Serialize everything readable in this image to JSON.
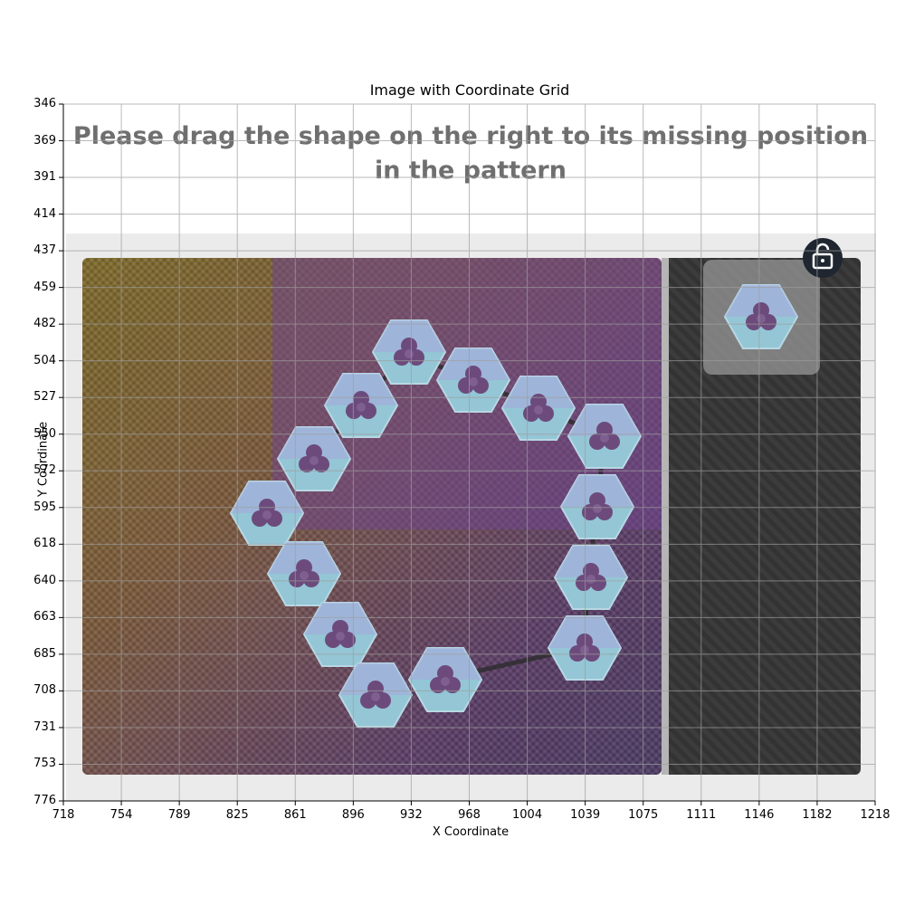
{
  "chart": {
    "title": "Image with Coordinate Grid",
    "xlabel": "X Coordinate",
    "ylabel": "Y Coordinate",
    "x_ticks": [
      "718",
      "754",
      "789",
      "825",
      "861",
      "896",
      "932",
      "968",
      "1004",
      "1039",
      "1075",
      "1111",
      "1146",
      "1182",
      "1218"
    ],
    "y_ticks": [
      "346",
      "369",
      "391",
      "414",
      "437",
      "459",
      "482",
      "504",
      "527",
      "550",
      "572",
      "595",
      "618",
      "640",
      "663",
      "685",
      "708",
      "731",
      "753",
      "776"
    ]
  },
  "captcha": {
    "instruction": "Please drag the shape on the right to its missing position in the pattern",
    "lock_icon": "lock-icon",
    "piece_icon": "hexagon-trefoil-icon",
    "colors": {
      "hex_fill": "#8fc3d2",
      "hex_fill_alt": "#a8a5d8",
      "trefoil": "#6b4a7a",
      "panel_bg": "#ebebeb",
      "dark_bg": "#383838"
    }
  }
}
